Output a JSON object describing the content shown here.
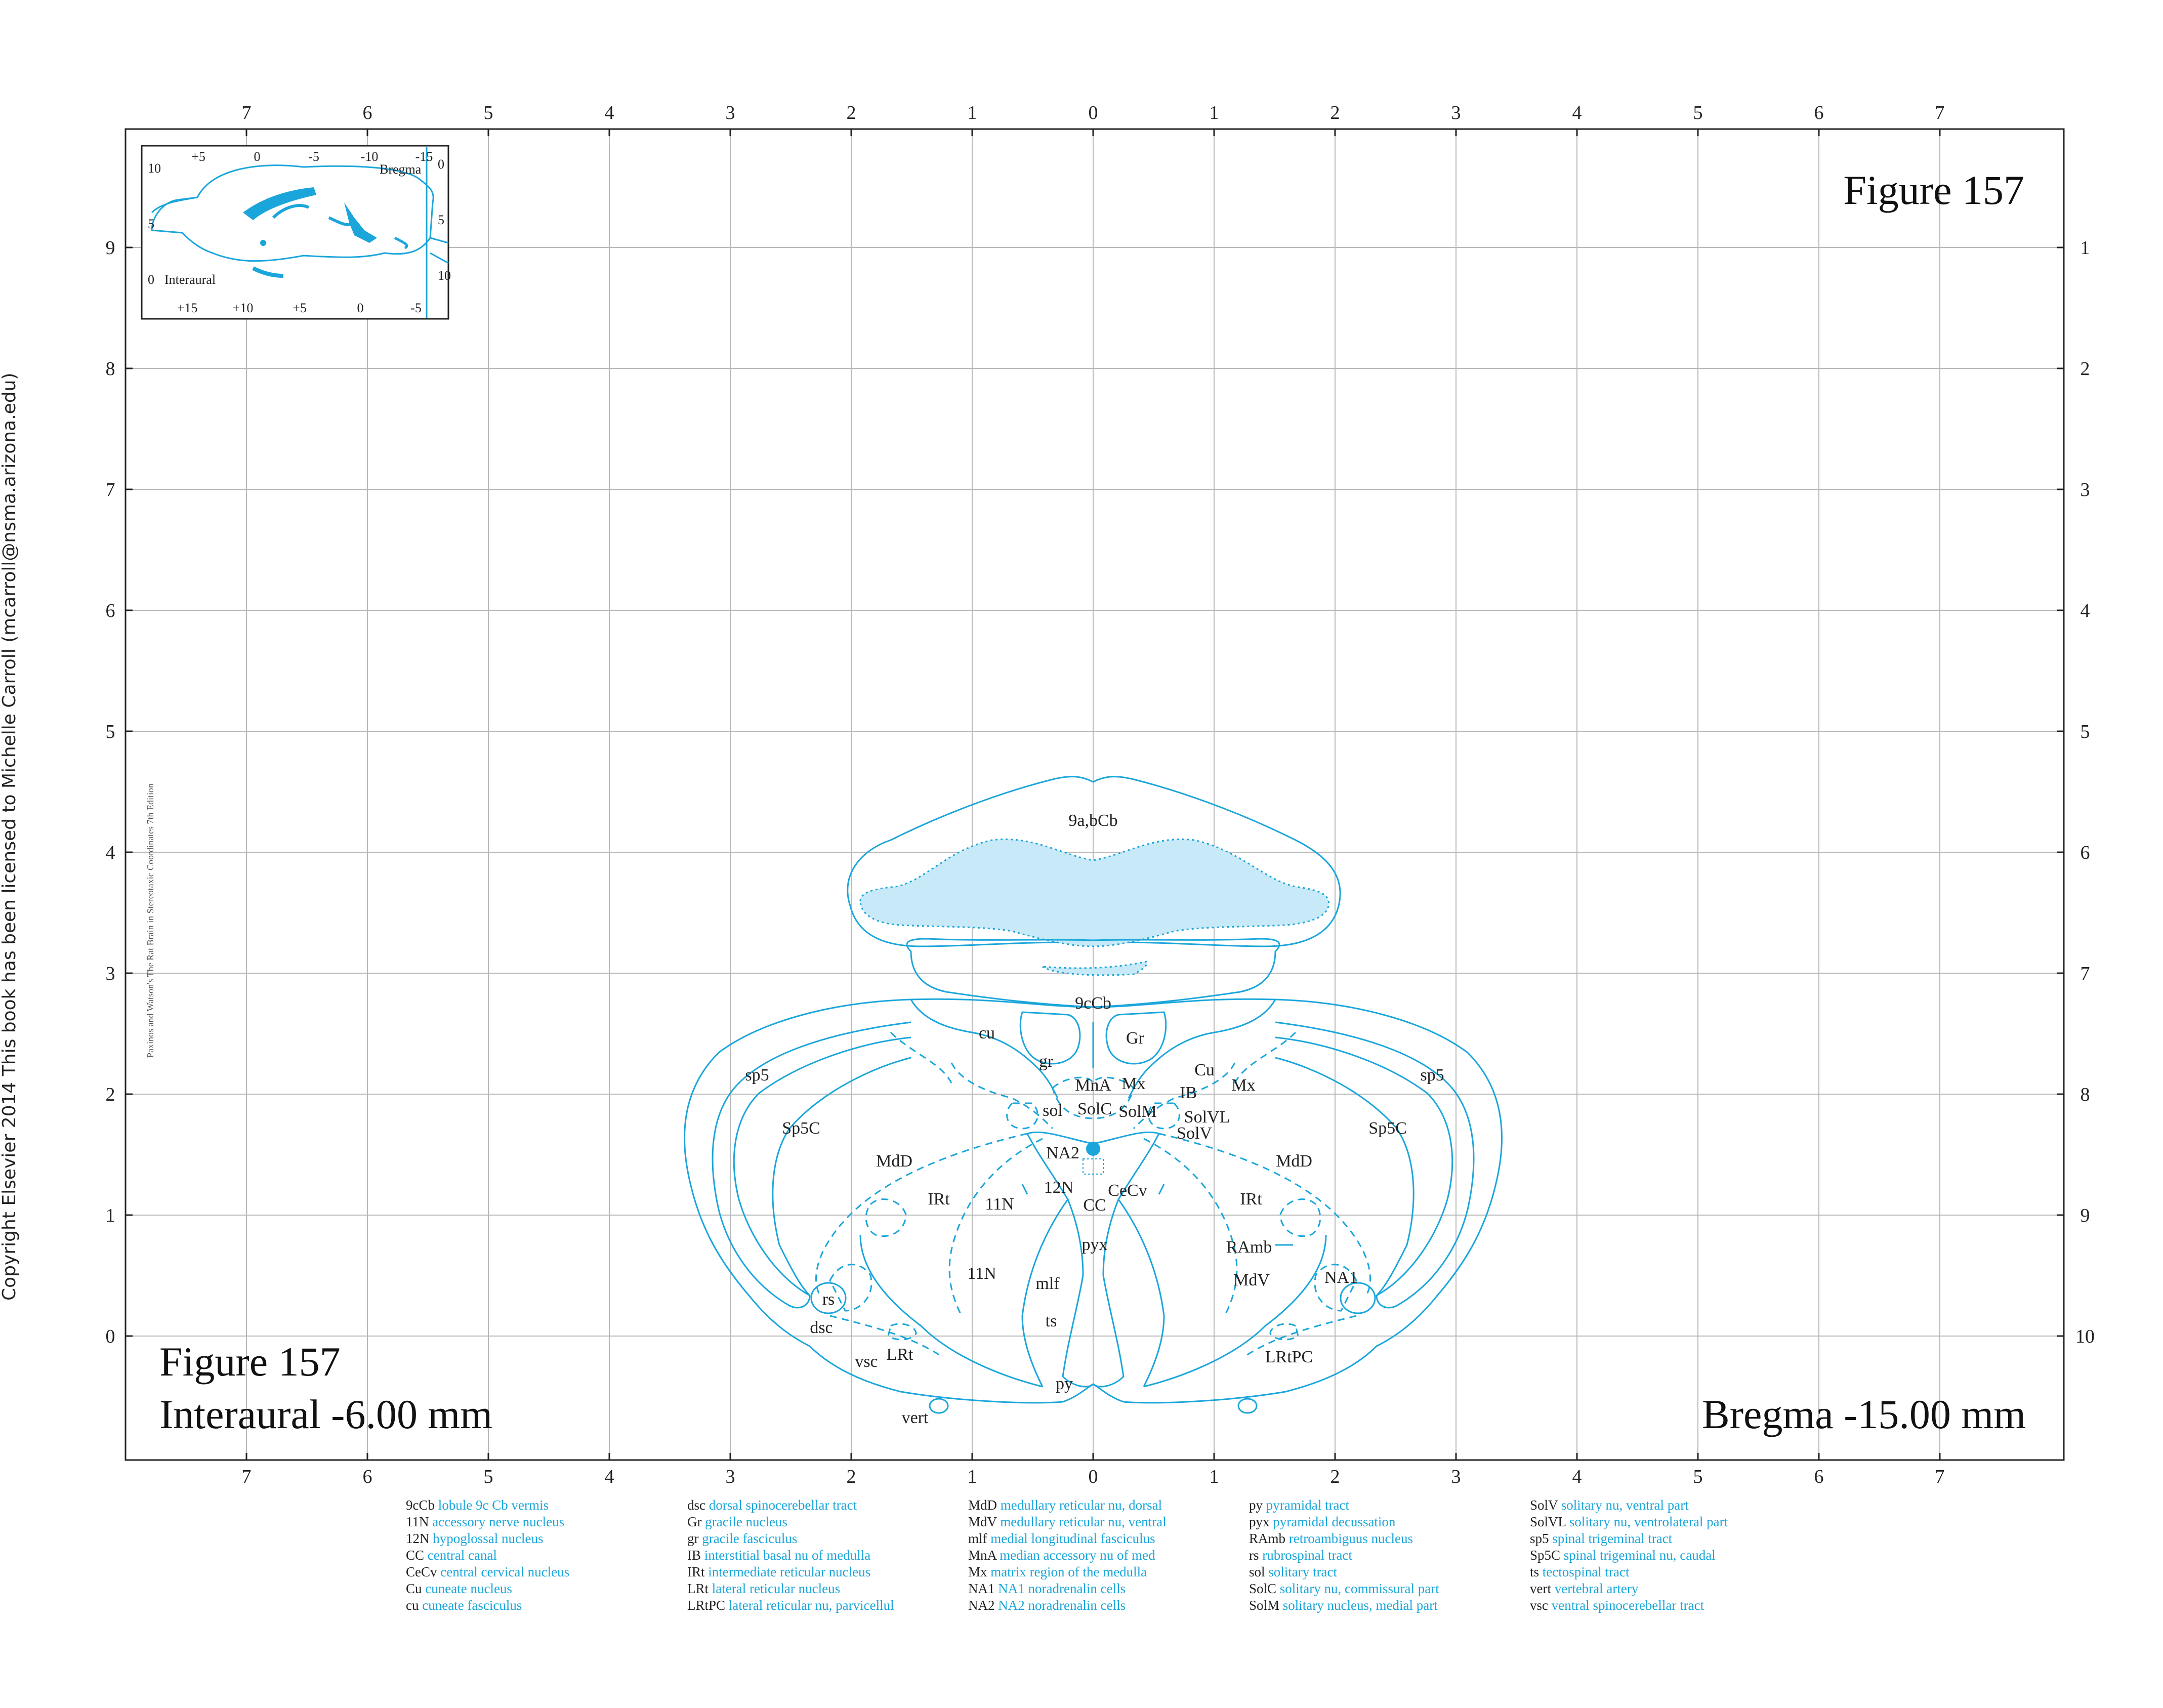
{
  "figure": {
    "title": "Figure 157",
    "interaural_label": "Figure 157",
    "interaural_value": "Interaural -6.00 mm",
    "bregma_value": "Bregma -15.00 mm"
  },
  "copyright": "Copyright Elsevier 2014 This book has been licensed to Michelle Carroll (mcarroll@nsma.arizona.edu)",
  "edition_note": "Paxinos and Watson's The Rat Brain in Stereotaxic Coordinates    7th Edition",
  "axes": {
    "top_ticks": [
      "7",
      "6",
      "5",
      "4",
      "3",
      "2",
      "1",
      "0",
      "1",
      "2",
      "3",
      "4",
      "5",
      "6",
      "7"
    ],
    "bottom_ticks": [
      "7",
      "6",
      "5",
      "4",
      "3",
      "2",
      "1",
      "0",
      "1",
      "2",
      "3",
      "4",
      "5",
      "6",
      "7"
    ],
    "left_ticks": [
      "9",
      "8",
      "7",
      "6",
      "5",
      "4",
      "3",
      "2",
      "1",
      "0"
    ],
    "right_ticks": [
      "1",
      "2",
      "3",
      "4",
      "5",
      "6",
      "7",
      "8",
      "9",
      "10"
    ]
  },
  "inset": {
    "top_ticks": [
      "+5",
      "0",
      "-5",
      "-10",
      "-15"
    ],
    "bottom_ticks": [
      "+15",
      "+10",
      "+5",
      "0",
      "-5"
    ],
    "left_ticks": [
      "10",
      "5",
      "0"
    ],
    "right_ticks": [
      "0",
      "5",
      "10"
    ],
    "bregma_label": "Bregma",
    "interaural_label": "Interaural"
  },
  "structure_labels": [
    "9a,bCb",
    "9cCb",
    "cu",
    "Gr",
    "gr",
    "Cu",
    "sp5",
    "sp5",
    "MnA",
    "Mx",
    "Mx",
    "IB",
    "sol",
    "SolC",
    "SolM",
    "SolVL",
    "SolV",
    "Sp5C",
    "Sp5C",
    "MdD",
    "MdD",
    "NA2",
    "12N",
    "CeCv",
    "CC",
    "IRt",
    "IRt",
    "11N",
    "11N",
    "pyx",
    "mlf",
    "RAmb",
    "MdV",
    "NA1",
    "rs",
    "dsc",
    "vsc",
    "LRt",
    "ts",
    "LRtPC",
    "py",
    "vert"
  ],
  "legend": [
    [
      {
        "abbr": "9cCb",
        "name": "lobule 9c Cb vermis"
      },
      {
        "abbr": "11N",
        "name": "accessory nerve nucleus"
      },
      {
        "abbr": "12N",
        "name": "hypoglossal nucleus"
      },
      {
        "abbr": "CC",
        "name": "central canal"
      },
      {
        "abbr": "CeCv",
        "name": "central cervical nucleus"
      },
      {
        "abbr": "Cu",
        "name": "cuneate nucleus"
      },
      {
        "abbr": "cu",
        "name": "cuneate fasciculus"
      }
    ],
    [
      {
        "abbr": "dsc",
        "name": "dorsal spinocerebellar tract"
      },
      {
        "abbr": "Gr",
        "name": "gracile nucleus"
      },
      {
        "abbr": "gr",
        "name": "gracile fasciculus"
      },
      {
        "abbr": "IB",
        "name": "interstitial basal nu of medulla"
      },
      {
        "abbr": "IRt",
        "name": "intermediate reticular nucleus"
      },
      {
        "abbr": "LRt",
        "name": "lateral reticular nucleus"
      },
      {
        "abbr": "LRtPC",
        "name": "lateral reticular nu, parvicellul"
      }
    ],
    [
      {
        "abbr": "MdD",
        "name": "medullary reticular nu, dorsal"
      },
      {
        "abbr": "MdV",
        "name": "medullary reticular nu, ventral"
      },
      {
        "abbr": "mlf",
        "name": "medial longitudinal fasciculus"
      },
      {
        "abbr": "MnA",
        "name": "median accessory nu of med"
      },
      {
        "abbr": "Mx",
        "name": "matrix region of the medulla"
      },
      {
        "abbr": "NA1",
        "name": "NA1 noradrenalin cells"
      },
      {
        "abbr": "NA2",
        "name": "NA2 noradrenalin cells"
      }
    ],
    [
      {
        "abbr": "py",
        "name": "pyramidal tract"
      },
      {
        "abbr": "pyx",
        "name": "pyramidal decussation"
      },
      {
        "abbr": "RAmb",
        "name": "retroambiguus nucleus"
      },
      {
        "abbr": "rs",
        "name": "rubrospinal tract"
      },
      {
        "abbr": "sol",
        "name": "solitary tract"
      },
      {
        "abbr": "SolC",
        "name": "solitary nu, commissural part"
      },
      {
        "abbr": "SolM",
        "name": "solitary nucleus, medial part"
      }
    ],
    [
      {
        "abbr": "SolV",
        "name": "solitary nu, ventral part"
      },
      {
        "abbr": "SolVL",
        "name": "solitary nu, ventrolateral part"
      },
      {
        "abbr": "sp5",
        "name": "spinal trigeminal tract"
      },
      {
        "abbr": "Sp5C",
        "name": "spinal trigeminal nu, caudal"
      },
      {
        "abbr": "ts",
        "name": "tectospinal tract"
      },
      {
        "abbr": "vert",
        "name": "vertebral artery"
      },
      {
        "abbr": "vsc",
        "name": "ventral spinocerebellar tract"
      }
    ]
  ],
  "colors": {
    "accent": "#1aa6db",
    "fill": "#c8e9f7",
    "grid": "#b5b5b5",
    "frame": "#222222",
    "text": "#222222"
  }
}
